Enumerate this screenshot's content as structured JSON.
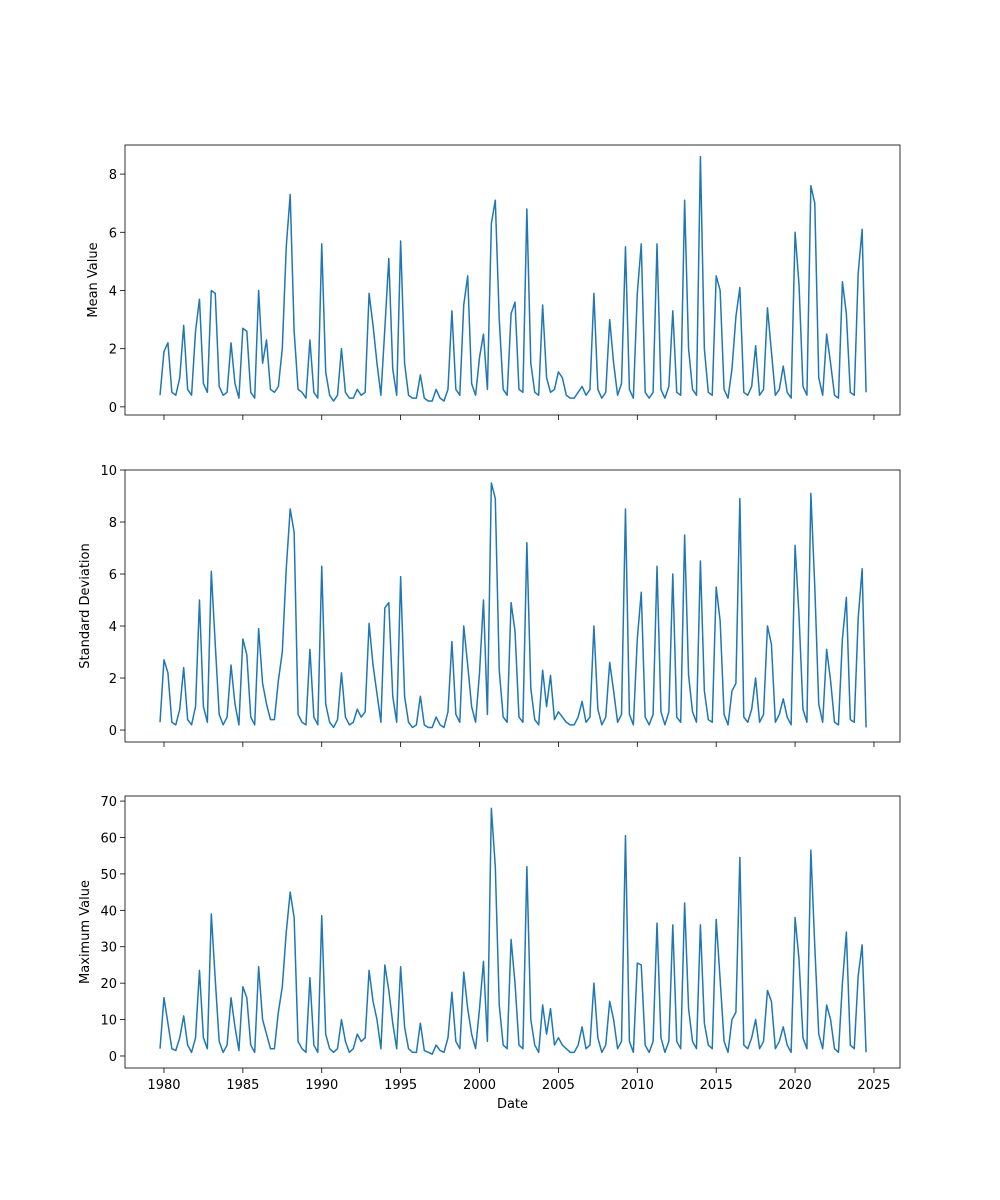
{
  "chart_data": [
    {
      "type": "line",
      "ylabel": "Mean Value",
      "color": "#1f77b4",
      "ylim": [
        -0.28,
        9.0
      ],
      "yticks": [
        0,
        2,
        4,
        6,
        8
      ],
      "values": [
        0.4,
        1.9,
        2.2,
        0.5,
        0.4,
        1.0,
        2.8,
        0.6,
        0.4,
        2.6,
        3.7,
        0.8,
        0.5,
        4.0,
        3.9,
        0.7,
        0.4,
        0.5,
        2.2,
        0.8,
        0.3,
        2.7,
        2.6,
        0.5,
        0.3,
        4.0,
        1.5,
        2.3,
        0.6,
        0.5,
        0.7,
        2.0,
        5.5,
        7.3,
        2.6,
        0.6,
        0.5,
        0.3,
        2.3,
        0.5,
        0.3,
        5.6,
        1.2,
        0.4,
        0.2,
        0.4,
        2.0,
        0.5,
        0.3,
        0.3,
        0.6,
        0.4,
        0.5,
        3.9,
        2.8,
        1.5,
        0.4,
        2.7,
        5.1,
        1.3,
        0.4,
        5.7,
        1.5,
        0.4,
        0.3,
        0.3,
        1.1,
        0.3,
        0.2,
        0.2,
        0.6,
        0.3,
        0.2,
        0.6,
        3.3,
        0.6,
        0.4,
        3.5,
        4.5,
        0.8,
        0.4,
        1.7,
        2.5,
        0.6,
        6.3,
        7.1,
        3.0,
        0.6,
        0.4,
        3.2,
        3.6,
        0.6,
        0.5,
        6.8,
        1.5,
        0.5,
        0.4,
        3.5,
        1.0,
        0.5,
        0.6,
        1.2,
        1.0,
        0.4,
        0.3,
        0.3,
        0.5,
        0.7,
        0.4,
        0.6,
        3.9,
        0.6,
        0.3,
        0.5,
        3.0,
        1.5,
        0.4,
        0.8,
        5.5,
        0.6,
        0.3,
        3.9,
        5.6,
        0.5,
        0.3,
        0.5,
        5.6,
        0.6,
        0.3,
        0.7,
        3.3,
        0.5,
        0.4,
        7.1,
        2.0,
        0.6,
        0.4,
        8.6,
        2.0,
        0.5,
        0.4,
        4.5,
        4.0,
        0.6,
        0.3,
        1.3,
        3.1,
        4.1,
        0.5,
        0.4,
        0.7,
        2.1,
        0.4,
        0.6,
        3.4,
        1.9,
        0.4,
        0.6,
        1.4,
        0.5,
        0.3,
        6.0,
        4.2,
        0.7,
        0.4,
        7.6,
        7.0,
        1.0,
        0.4,
        2.5,
        1.5,
        0.4,
        0.3,
        4.3,
        3.2,
        0.5,
        0.4,
        4.6,
        6.1,
        0.5
      ]
    },
    {
      "type": "line",
      "ylabel": "Standard Deviation",
      "color": "#1f77b4",
      "ylim": [
        -0.46,
        10
      ],
      "yticks": [
        0,
        2,
        4,
        6,
        8,
        10
      ],
      "values": [
        0.3,
        2.7,
        2.2,
        0.3,
        0.2,
        0.8,
        2.4,
        0.4,
        0.2,
        0.9,
        5.0,
        0.9,
        0.3,
        6.1,
        3.3,
        0.6,
        0.2,
        0.5,
        2.5,
        1.0,
        0.2,
        3.5,
        2.9,
        0.5,
        0.2,
        3.9,
        1.8,
        1.0,
        0.4,
        0.4,
        1.9,
        3.0,
        6.2,
        8.5,
        7.6,
        0.6,
        0.3,
        0.2,
        3.1,
        0.5,
        0.2,
        6.3,
        1.0,
        0.3,
        0.1,
        0.4,
        2.2,
        0.5,
        0.2,
        0.3,
        0.8,
        0.5,
        0.7,
        4.1,
        2.5,
        1.4,
        0.3,
        4.7,
        4.9,
        1.3,
        0.3,
        5.9,
        1.3,
        0.3,
        0.1,
        0.2,
        1.3,
        0.2,
        0.1,
        0.1,
        0.5,
        0.2,
        0.1,
        0.7,
        3.4,
        0.6,
        0.3,
        4.0,
        2.5,
        0.9,
        0.3,
        2.2,
        5.0,
        0.6,
        9.5,
        8.9,
        2.3,
        0.5,
        0.3,
        4.9,
        3.8,
        0.5,
        0.3,
        7.2,
        1.6,
        0.4,
        0.2,
        2.3,
        0.9,
        2.1,
        0.4,
        0.7,
        0.5,
        0.3,
        0.2,
        0.2,
        0.5,
        1.1,
        0.3,
        0.5,
        4.0,
        0.8,
        0.2,
        0.5,
        2.6,
        1.5,
        0.3,
        0.6,
        8.5,
        0.6,
        0.2,
        3.5,
        5.3,
        0.5,
        0.2,
        0.6,
        6.3,
        0.7,
        0.2,
        0.7,
        6.0,
        0.5,
        0.3,
        7.5,
        2.1,
        0.7,
        0.3,
        6.5,
        1.5,
        0.4,
        0.3,
        5.5,
        4.2,
        0.6,
        0.2,
        1.5,
        1.8,
        8.9,
        0.5,
        0.3,
        0.8,
        2.0,
        0.3,
        0.6,
        4.0,
        3.3,
        0.3,
        0.6,
        1.2,
        0.5,
        0.2,
        7.1,
        4.4,
        0.8,
        0.3,
        9.1,
        5.5,
        1.0,
        0.3,
        3.1,
        1.9,
        0.3,
        0.2,
        3.5,
        5.1,
        0.4,
        0.3,
        4.3,
        6.2,
        0.1
      ]
    },
    {
      "type": "line",
      "ylabel": "Maximum Value",
      "xlabel": "Date",
      "color": "#1f77b4",
      "ylim": [
        -3.3,
        71.4
      ],
      "yticks": [
        0,
        10,
        20,
        30,
        40,
        50,
        60,
        70
      ],
      "xlim": [
        1977.53,
        2026.65
      ],
      "xticks": [
        1980,
        1985,
        1990,
        1995,
        2000,
        2005,
        2010,
        2015,
        2020,
        2025
      ],
      "x": [
        1979.75,
        1980,
        1980.25,
        1980.5,
        1980.75,
        1981,
        1981.25,
        1981.5,
        1981.75,
        1982,
        1982.25,
        1982.5,
        1982.75,
        1983,
        1983.25,
        1983.5,
        1983.75,
        1984,
        1984.25,
        1984.5,
        1984.75,
        1985,
        1985.25,
        1985.5,
        1985.75,
        1986,
        1986.25,
        1986.5,
        1986.75,
        1987,
        1987.25,
        1987.5,
        1987.75,
        1988,
        1988.25,
        1988.5,
        1988.75,
        1989,
        1989.25,
        1989.5,
        1989.75,
        1990,
        1990.25,
        1990.5,
        1990.75,
        1991,
        1991.25,
        1991.5,
        1991.75,
        1992,
        1992.25,
        1992.5,
        1992.75,
        1993,
        1993.25,
        1993.5,
        1993.75,
        1994,
        1994.25,
        1994.5,
        1994.75,
        1995,
        1995.25,
        1995.5,
        1995.75,
        1996,
        1996.25,
        1996.5,
        1996.75,
        1997,
        1997.25,
        1997.5,
        1997.75,
        1998,
        1998.25,
        1998.5,
        1998.75,
        1999,
        1999.25,
        1999.5,
        1999.75,
        2000,
        2000.25,
        2000.5,
        2000.75,
        2001,
        2001.25,
        2001.5,
        2001.75,
        2002,
        2002.25,
        2002.5,
        2002.75,
        2003,
        2003.25,
        2003.5,
        2003.75,
        2004,
        2004.25,
        2004.5,
        2004.75,
        2005,
        2005.25,
        2005.5,
        2005.75,
        2006,
        2006.25,
        2006.5,
        2006.75,
        2007,
        2007.25,
        2007.5,
        2007.75,
        2008,
        2008.25,
        2008.5,
        2008.75,
        2009,
        2009.25,
        2009.5,
        2009.75,
        2010,
        2010.25,
        2010.5,
        2010.75,
        2011,
        2011.25,
        2011.5,
        2011.75,
        2012,
        2012.25,
        2012.5,
        2012.75,
        2013,
        2013.25,
        2013.5,
        2013.75,
        2014,
        2014.25,
        2014.5,
        2014.75,
        2015,
        2015.25,
        2015.5,
        2015.75,
        2016,
        2016.25,
        2016.5,
        2016.75,
        2017,
        2017.25,
        2017.5,
        2017.75,
        2018,
        2018.25,
        2018.5,
        2018.75,
        2019,
        2019.25,
        2019.5,
        2019.75,
        2020,
        2020.25,
        2020.5,
        2020.75,
        2021,
        2021.25,
        2021.5,
        2021.75,
        2022,
        2022.25,
        2022.5,
        2022.75,
        2023,
        2023.25,
        2023.5,
        2023.75,
        2024,
        2024.25,
        2024.5
      ],
      "values": [
        2,
        16,
        9,
        2,
        1.5,
        5,
        11,
        3,
        1,
        5,
        23.5,
        5,
        2,
        39,
        21,
        4,
        1,
        3,
        16,
        8,
        1.5,
        19,
        16,
        3,
        1,
        24.5,
        10,
        6,
        2,
        2,
        12,
        19,
        34,
        45,
        38,
        4,
        2,
        1,
        21.5,
        3,
        1,
        38.5,
        6,
        2,
        1,
        2,
        10,
        4,
        1,
        2,
        6,
        4,
        5,
        23.5,
        15,
        10,
        2,
        25,
        18,
        9,
        2,
        24.5,
        8,
        2,
        1,
        1,
        9,
        1.5,
        1,
        0.5,
        3,
        1.5,
        1,
        5,
        17.5,
        4,
        2,
        23,
        13,
        6,
        2,
        13,
        26,
        4,
        68,
        52,
        14,
        3,
        2,
        32,
        20,
        3,
        2,
        52,
        10,
        3,
        1,
        14,
        6,
        13,
        3,
        5,
        3,
        2,
        1,
        1,
        3,
        8,
        2,
        3,
        20,
        5,
        1,
        3,
        15,
        10,
        2,
        4,
        60.5,
        4,
        1,
        25.5,
        25,
        3,
        1,
        4,
        36.5,
        5,
        1,
        4,
        36,
        4,
        2,
        42,
        13,
        4,
        2,
        36,
        9,
        3,
        2,
        37.5,
        21,
        4,
        1,
        10,
        12,
        54.5,
        3,
        2,
        5,
        10,
        2,
        4,
        18,
        15,
        2,
        4,
        8,
        3,
        1,
        38,
        26.5,
        5,
        2,
        56.5,
        30,
        6,
        2,
        14,
        10,
        2,
        1,
        20,
        34,
        3,
        2,
        22,
        30.5,
        1
      ]
    }
  ]
}
